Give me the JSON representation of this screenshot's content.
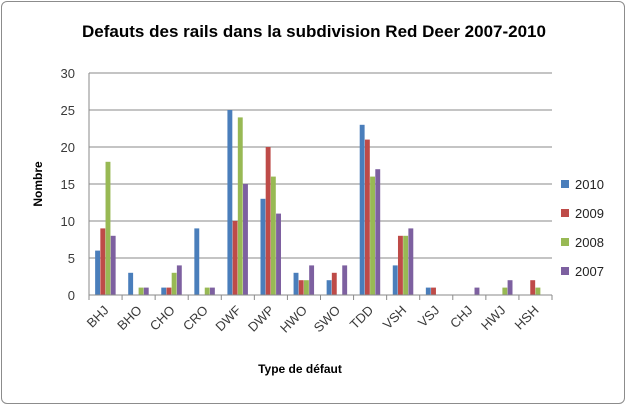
{
  "chart_data": {
    "type": "bar",
    "title": "Defauts des rails dans la subdivision Red Deer 2007-2010",
    "xlabel": "Type de défaut",
    "ylabel": "Nombre",
    "ylim": [
      0,
      30
    ],
    "yticks": [
      0,
      5,
      10,
      15,
      20,
      25,
      30
    ],
    "grid": "horizontal",
    "legend_position": "right",
    "categories": [
      "BHJ",
      "BHO",
      "CHO",
      "CRO",
      "DWF",
      "DWP",
      "HWO",
      "SWO",
      "TDD",
      "VSH",
      "VSJ",
      "CHJ",
      "HWJ",
      "HSH"
    ],
    "series": [
      {
        "name": "2010",
        "color": "#4a7ebb",
        "values": [
          6,
          3,
          1,
          9,
          25,
          13,
          3,
          2,
          23,
          4,
          1,
          0,
          0,
          0
        ]
      },
      {
        "name": "2009",
        "color": "#be4b48",
        "values": [
          9,
          0,
          1,
          0,
          10,
          20,
          2,
          3,
          21,
          8,
          1,
          0,
          0,
          2
        ]
      },
      {
        "name": "2008",
        "color": "#98b954",
        "values": [
          18,
          1,
          3,
          1,
          24,
          16,
          2,
          0,
          16,
          8,
          0,
          0,
          1,
          1
        ]
      },
      {
        "name": "2007",
        "color": "#7d60a0",
        "values": [
          8,
          1,
          4,
          1,
          15,
          11,
          4,
          4,
          17,
          9,
          0,
          1,
          2,
          0
        ]
      }
    ]
  }
}
